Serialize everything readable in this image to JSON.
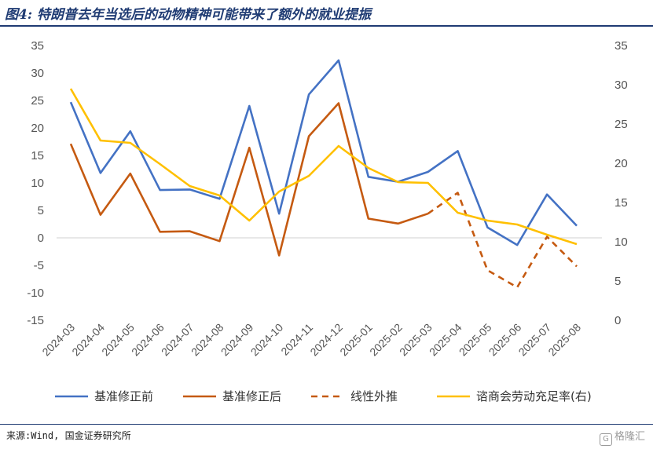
{
  "figure": {
    "title": "图4: 特朗普去年当选后的动物精神可能带来了额外的就业提振",
    "source": "来源:Wind, 国金证券研究所",
    "watermark": "格隆汇"
  },
  "chart_data": {
    "type": "line",
    "categories": [
      "2024-03",
      "2024-04",
      "2024-05",
      "2024-06",
      "2024-07",
      "2024-08",
      "2024-09",
      "2024-10",
      "2024-11",
      "2024-12",
      "2025-01",
      "2025-02",
      "2025-03",
      "2025-04",
      "2025-05",
      "2025-06",
      "2025-07",
      "2025-08"
    ],
    "left_axis": {
      "ylim": [
        -15,
        35
      ],
      "ticks": [
        35,
        30,
        25,
        20,
        15,
        10,
        5,
        0,
        -5,
        -10,
        -15
      ]
    },
    "right_axis": {
      "ylim": [
        0,
        35
      ],
      "ticks": [
        35,
        30,
        25,
        20,
        15,
        10,
        5,
        0
      ]
    },
    "grid": false,
    "legend_position": "bottom",
    "series": [
      {
        "name": "基准修正前",
        "axis": "left",
        "color": "#4472c4",
        "style": "solid",
        "values": [
          24.7,
          11.8,
          19.4,
          8.7,
          8.8,
          7.1,
          24.0,
          4.4,
          26.1,
          32.3,
          11.1,
          10.2,
          12.0,
          15.8,
          1.9,
          -1.3,
          7.9,
          2.2
        ]
      },
      {
        "name": "基准修正后",
        "axis": "left",
        "color": "#c55a11",
        "style": "solid",
        "values": [
          17.1,
          4.2,
          11.7,
          1.1,
          1.2,
          -0.6,
          16.4,
          -3.2,
          18.5,
          24.5,
          3.5,
          2.6,
          4.4,
          null,
          null,
          null,
          null,
          null
        ]
      },
      {
        "name": "线性外推",
        "axis": "left",
        "color": "#c55a11",
        "style": "dashed",
        "values": [
          null,
          null,
          null,
          null,
          null,
          null,
          null,
          null,
          null,
          null,
          null,
          null,
          4.4,
          8.2,
          -5.9,
          -9.0,
          0.2,
          -5.2
        ]
      },
      {
        "name": "谘商会劳动充足率(右)",
        "axis": "right",
        "color": "#ffc000",
        "style": "solid",
        "values": [
          29.5,
          22.9,
          22.6,
          19.9,
          17.1,
          15.9,
          12.7,
          16.4,
          18.4,
          22.2,
          19.4,
          17.6,
          17.5,
          13.7,
          12.7,
          12.2,
          10.9,
          9.7
        ]
      }
    ]
  }
}
